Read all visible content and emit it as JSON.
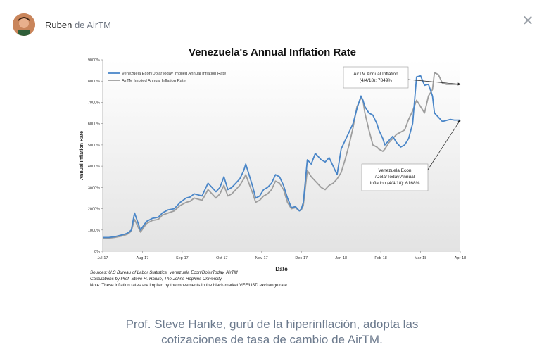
{
  "message": {
    "sender_name": "Ruben",
    "sender_separator": "de",
    "sender_company": "AirTM"
  },
  "icons": {
    "close": "close-icon",
    "avatar": "avatar"
  },
  "chart_data": {
    "type": "line",
    "title": "Venezuela's Annual Inflation Rate",
    "xlabel": "Date",
    "ylabel": "Annual Inflation Rate",
    "ylim": [
      0,
      9000
    ],
    "yticks": [
      "0%",
      "1000%",
      "2000%",
      "3000%",
      "4000%",
      "5000%",
      "6000%",
      "7000%",
      "8000%",
      "9000%"
    ],
    "xticks": [
      "Jul-17",
      "Aug-17",
      "Sep-17",
      "Oct-17",
      "Nov-17",
      "Dec-17",
      "Jan-18",
      "Feb-18",
      "Mar-18",
      "Apr-18"
    ],
    "grid": false,
    "legend": "top-left",
    "series": [
      {
        "name": "Venezuela Econ/DolarToday Implied Annual Inflation Rate",
        "color": "#4a86c8",
        "x": [
          0,
          0.15,
          0.3,
          0.45,
          0.55,
          0.62,
          0.66,
          0.72,
          0.8,
          0.95,
          1.1,
          1.25,
          1.4,
          1.5,
          1.65,
          1.8,
          1.95,
          2.1,
          2.2,
          2.3,
          2.4,
          2.5,
          2.55,
          2.65,
          2.75,
          2.85,
          2.95,
          3.05,
          3.15,
          3.25,
          3.35,
          3.45,
          3.55,
          3.6,
          3.7,
          3.78,
          3.85,
          3.95,
          4.05,
          4.15,
          4.25,
          4.35,
          4.45,
          4.55,
          4.65,
          4.75,
          4.85,
          4.95,
          5.0,
          5.05,
          5.15,
          5.25,
          5.35,
          5.5,
          5.6,
          5.7,
          5.8,
          5.9,
          6.0,
          6.1,
          6.2,
          6.3,
          6.4,
          6.5,
          6.55,
          6.6,
          6.7,
          6.8,
          6.9,
          6.95,
          7.05,
          7.1,
          7.2,
          7.3,
          7.4,
          7.5,
          7.6,
          7.7,
          7.8,
          7.9,
          8.0,
          8.1,
          8.2,
          8.3,
          8.35,
          8.45,
          8.55,
          8.65,
          8.75,
          8.85,
          8.92,
          8.97,
          9.0
        ],
        "values": [
          650,
          650,
          680,
          750,
          800,
          850,
          900,
          1000,
          1800,
          1000,
          1400,
          1550,
          1600,
          1800,
          1950,
          2000,
          2300,
          2500,
          2550,
          2700,
          2650,
          2600,
          2800,
          3200,
          3000,
          2800,
          3000,
          3500,
          2900,
          3000,
          3200,
          3400,
          3800,
          4100,
          3500,
          3000,
          2500,
          2600,
          2900,
          3000,
          3200,
          3600,
          3500,
          3100,
          2500,
          2050,
          2100,
          1900,
          2000,
          2300,
          4300,
          4100,
          4600,
          4300,
          4200,
          4400,
          4000,
          3600,
          4800,
          5200,
          5600,
          6000,
          6700,
          7300,
          7100,
          6800,
          6500,
          6400,
          6000,
          5700,
          5300,
          5000,
          5200,
          5400,
          5100,
          4900,
          5000,
          5300,
          6000,
          8200,
          8250,
          7800,
          7850,
          7300,
          6500,
          6300,
          6100,
          6150,
          6200,
          6168,
          6168,
          6168,
          6168
        ]
      },
      {
        "name": "AirTM Implied Annual Inflation Rate",
        "color": "#9e9e9e",
        "x": [
          0,
          0.15,
          0.3,
          0.45,
          0.55,
          0.62,
          0.66,
          0.72,
          0.8,
          0.95,
          1.1,
          1.25,
          1.4,
          1.5,
          1.65,
          1.8,
          1.95,
          2.1,
          2.2,
          2.3,
          2.4,
          2.5,
          2.55,
          2.65,
          2.75,
          2.85,
          2.95,
          3.05,
          3.15,
          3.25,
          3.35,
          3.45,
          3.55,
          3.6,
          3.7,
          3.78,
          3.85,
          3.95,
          4.05,
          4.15,
          4.25,
          4.35,
          4.45,
          4.55,
          4.65,
          4.75,
          4.85,
          4.95,
          5.0,
          5.05,
          5.15,
          5.25,
          5.35,
          5.5,
          5.6,
          5.7,
          5.8,
          5.9,
          6.0,
          6.1,
          6.2,
          6.3,
          6.4,
          6.5,
          6.55,
          6.6,
          6.7,
          6.8,
          6.9,
          6.95,
          7.05,
          7.1,
          7.2,
          7.3,
          7.4,
          7.5,
          7.6,
          7.7,
          7.8,
          7.9,
          8.0,
          8.1,
          8.2,
          8.3,
          8.35,
          8.45,
          8.55,
          8.65,
          8.75,
          8.85,
          8.92,
          8.97,
          9.0
        ],
        "values": [
          620,
          620,
          650,
          700,
          750,
          800,
          850,
          950,
          1500,
          900,
          1300,
          1450,
          1500,
          1700,
          1800,
          1900,
          2150,
          2300,
          2350,
          2500,
          2450,
          2400,
          2550,
          2900,
          2700,
          2500,
          2700,
          3100,
          2600,
          2700,
          2900,
          3100,
          3400,
          3600,
          3100,
          2700,
          2300,
          2400,
          2600,
          2700,
          2900,
          3300,
          3200,
          2900,
          2300,
          2000,
          2050,
          1900,
          1950,
          2150,
          3800,
          3500,
          3300,
          3000,
          2900,
          3100,
          3200,
          3400,
          3700,
          4300,
          5000,
          5800,
          6800,
          7200,
          7100,
          6500,
          5700,
          5000,
          4900,
          4800,
          4700,
          4800,
          5100,
          5300,
          5500,
          5600,
          5700,
          6200,
          6600,
          7100,
          6800,
          6500,
          7300,
          7600,
          8400,
          8300,
          7900,
          7849,
          7849,
          7849,
          7849,
          7849,
          7849
        ]
      }
    ],
    "annotations": [
      {
        "text_lines": [
          "AirTM Annual Inflation",
          "(4/4/18): 7849%"
        ]
      },
      {
        "text_lines": [
          "Venezuela Econ",
          "/DolarToday Annual",
          "Inflation (4/4/18): 6168%"
        ]
      }
    ],
    "sources": [
      "Sources: U.S Bureau of Labor Statistics, Venezuela Econ/DolarToday, AirTM",
      "Calculations by Prof. Steve H. Hanke, The Johns Hopkins University.",
      "Note: These inflation rates are implied by the movements in the black-market VEF/USD exchange rate."
    ]
  },
  "caption": {
    "line1": "Prof. Steve Hanke, gurú de la hiperinflación, adopta las",
    "line2": "cotizaciones de tasa de cambio de AirTM."
  }
}
